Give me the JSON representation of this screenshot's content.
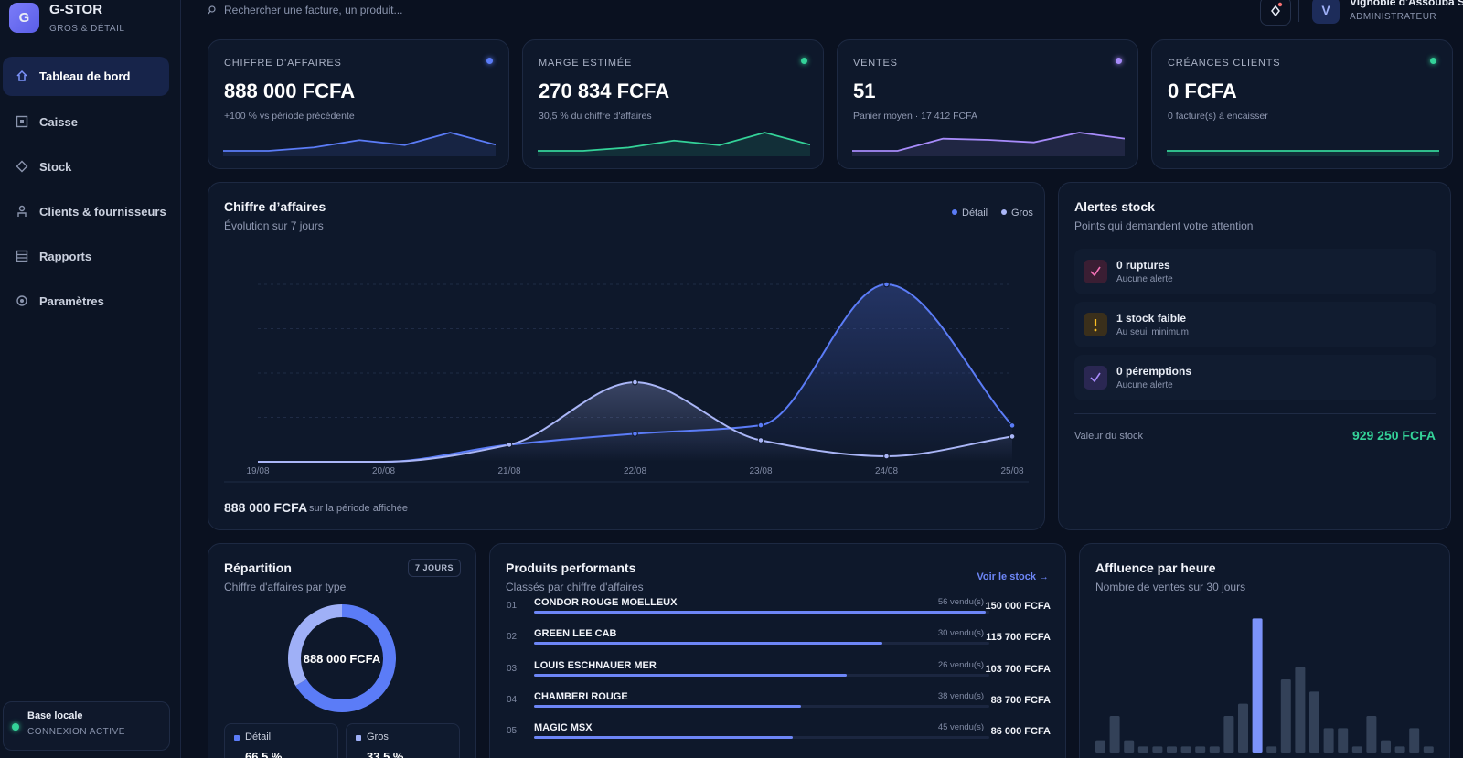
{
  "sidebar": {
    "logo": "G",
    "brand": "G-STOR",
    "tagline": "GROS & DÉTAIL",
    "nav": [
      "Tableau de bord",
      "Caisse",
      "Stock",
      "Clients & fournisseurs",
      "Rapports",
      "Paramètres"
    ],
    "status": {
      "title": "Base locale",
      "subtitle": "CONNEXION ACTIVE"
    }
  },
  "topbar": {
    "search": "Rechercher une facture, un produit...",
    "user": {
      "avatar": "V",
      "name": "Vignoble d'Assouba SA",
      "role": "ADMINISTRATEUR"
    }
  },
  "kpis": [
    {
      "label": "CHIFFRE D’AFFAIRES",
      "value": "888 000 FCFA",
      "note": "+100 % vs période précédente",
      "color": "#5b7cf7",
      "spark": [
        0,
        0,
        68000,
        215000,
        116000,
        366000,
        123000
      ]
    },
    {
      "label": "MARGE ESTIMÉE",
      "value": "270 834 FCFA",
      "note": "30,5 % du chiffre d'affaires",
      "color": "#34d399",
      "spark": [
        0,
        0,
        20000,
        62000,
        34000,
        110000,
        37000
      ]
    },
    {
      "label": "VENTES",
      "value": "51",
      "note": "Panier moyen · 17 412 FCFA",
      "color": "#a78bfa",
      "spark": [
        0,
        0,
        10,
        9,
        7,
        15,
        10
      ]
    },
    {
      "label": "CRÉANCES CLIENTS",
      "value": "0 FCFA",
      "note": "0 facture(s) à encaisser",
      "color": "#34d399",
      "spark": [
        0,
        0,
        0,
        0,
        0,
        0,
        0
      ]
    }
  ],
  "revenue_chart": {
    "type": "line",
    "title": "Chiffre d’affaires",
    "subtitle": "Évolution sur 7 jours",
    "categories": [
      "19/08",
      "20/08",
      "21/08",
      "22/08",
      "23/08",
      "24/08",
      "25/08"
    ],
    "series": [
      {
        "name": "Détail",
        "color": "#5b7cf7",
        "values": [
          0,
          0,
          34000,
          56000,
          73000,
          355000,
          72520
        ]
      },
      {
        "name": "Gros",
        "color": "#aab6f7",
        "values": [
          0,
          0,
          34000,
          159000,
          43000,
          11000,
          50480
        ]
      }
    ],
    "ylim": [
      0,
      355000
    ],
    "grid": true,
    "total": "888 000 FCFA",
    "total_note": "sur la période affichée"
  },
  "alerts": {
    "title": "Alertes stock",
    "subtitle": "Points qui demandent votre attention",
    "items": [
      {
        "title": "0 ruptures",
        "note": "Aucune alerte"
      },
      {
        "title": "1 stock faible",
        "note": "Au seuil minimum"
      },
      {
        "title": "0 péremptions",
        "note": "Aucune alerte"
      }
    ],
    "stock_label": "Valeur du stock",
    "stock_value": "929 250 FCFA"
  },
  "repartition": {
    "type": "pie",
    "title": "Répartition",
    "badge": "7 JOURS",
    "subtitle": "Chiffre d'affaires par type",
    "center": "888 000 FCFA",
    "categories": [
      "Détail",
      "Gros"
    ],
    "values": [
      66.5,
      33.5
    ],
    "value_labels": [
      "66,5 %",
      "33,5 %"
    ],
    "colors": [
      "#5b7cf7",
      "#9fb0f7"
    ]
  },
  "products": {
    "type": "bar",
    "title": "Produits performants",
    "subtitle": "Classés par chiffre d'affaires",
    "link": "Voir le stock →",
    "ranks": [
      "01",
      "02",
      "03",
      "04",
      "05"
    ],
    "names": [
      "CONDOR ROUGE MOELLEUX",
      "GREEN LEE CAB",
      "LOUIS ESCHNAUER MER",
      "CHAMBERI ROUGE",
      "MAGIC MSX"
    ],
    "sold": [
      "56 vendu(s)",
      "30 vendu(s)",
      "26 vendu(s)",
      "38 vendu(s)",
      "45 vendu(s)"
    ],
    "values": [
      150000,
      115700,
      103700,
      88700,
      86000
    ],
    "value_labels": [
      "150 000 FCFA",
      "115 700 FCFA",
      "103 700 FCFA",
      "88 700 FCFA",
      "86 000 FCFA"
    ],
    "color": "#6d86f7"
  },
  "hourly": {
    "type": "bar",
    "title": "Affluence par heure",
    "subtitle": "Nombre de ventes sur 30 jours",
    "values": [
      2,
      6,
      2,
      1,
      1,
      1,
      1,
      1,
      1,
      6,
      8,
      22,
      1,
      12,
      14,
      10,
      4,
      4,
      1,
      6,
      2,
      1,
      4,
      1
    ],
    "ylim": [
      0,
      24
    ],
    "color": "#334158",
    "highlight_color": "#7c93fb"
  }
}
